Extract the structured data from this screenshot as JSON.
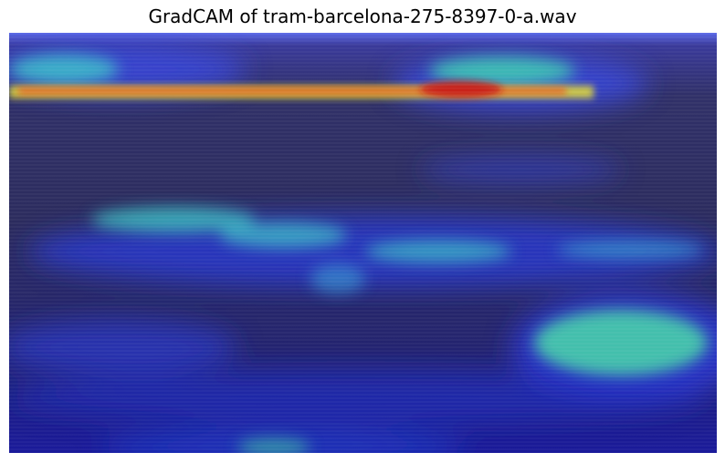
{
  "chart_data": {
    "type": "heatmap",
    "title": "GradCAM of tram-barcelona-275-8397-0-a.wav",
    "axes_visible": false,
    "colormap": "jet",
    "overlay": "GradCAM heatmap over spectrogram",
    "colors": {
      "background": "#2a2a60",
      "low": "#1a1aa0",
      "mid": "#3fd2c8",
      "high": "#d82a20"
    }
  }
}
